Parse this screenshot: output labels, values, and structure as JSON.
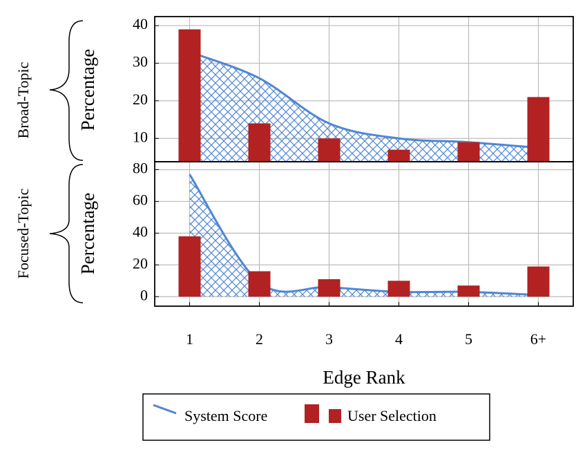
{
  "chart_data": [
    {
      "type": "bar-line",
      "group_label": "Broad-Topic",
      "y_label": "Percentage",
      "ylim": [
        3.8,
        42.4
      ],
      "yticks": [
        10,
        20,
        30,
        40
      ],
      "grid": true,
      "series": [
        {
          "name": "System Score",
          "kind": "line",
          "color": "#4f86d4",
          "values": [
            33,
            26,
            14,
            10,
            9,
            7.5
          ]
        },
        {
          "name": "User Selection",
          "kind": "bar",
          "color": "#b22222",
          "values": [
            39,
            14,
            10,
            7,
            9,
            21
          ]
        }
      ]
    },
    {
      "type": "bar-line",
      "group_label": "Focused-Topic",
      "y_label": "Percentage",
      "x_label": "Edge Rank",
      "categories": [
        "1",
        "2",
        "3",
        "4",
        "5",
        "6+"
      ],
      "ylim": [
        -6,
        85
      ],
      "yticks": [
        0,
        20,
        40,
        60,
        80
      ],
      "grid": true,
      "series": [
        {
          "kind": "line",
          "color": "#4f86d4",
          "values": [
            77,
            9,
            6,
            3,
            3,
            1
          ]
        },
        {
          "kind": "bar",
          "color": "#b22222",
          "values": [
            38,
            16,
            11,
            10,
            7,
            19
          ]
        }
      ]
    }
  ]
}
